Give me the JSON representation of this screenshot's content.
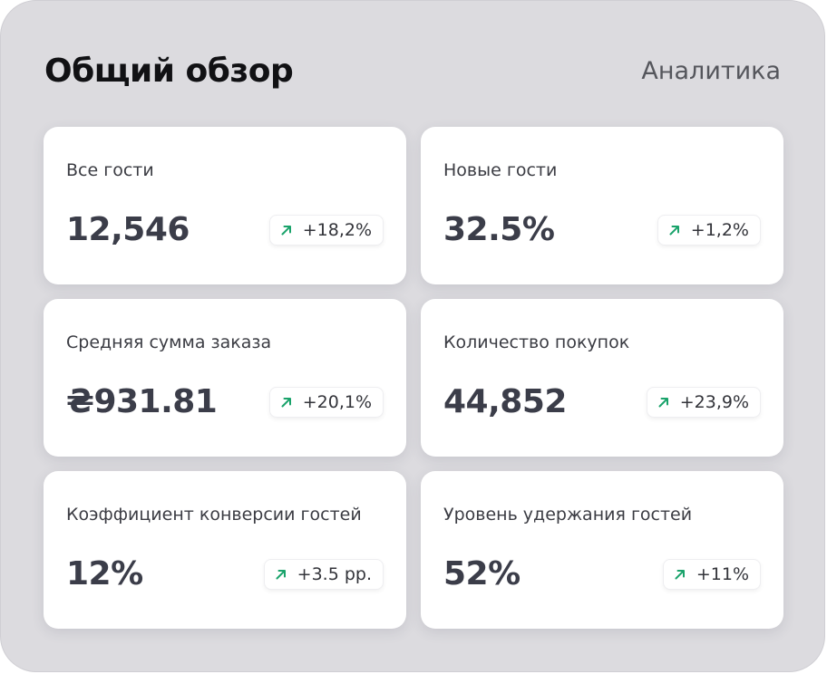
{
  "header": {
    "title": "Общий обзор",
    "link_label": "Аналитика"
  },
  "colors": {
    "trend_up": "#1aa36b"
  },
  "cards": [
    {
      "label": "Все гости",
      "value": "12,546",
      "change": "+18,2%",
      "trend": "arrow-up-right-icon"
    },
    {
      "label": "Новые гости",
      "value": "32.5%",
      "change": "+1,2%",
      "trend": "arrow-up-right-icon"
    },
    {
      "label": "Средняя сумма заказа",
      "value": "₴931.81",
      "change": "+20,1%",
      "trend": "arrow-up-right-icon"
    },
    {
      "label": "Количество покупок",
      "value": "44,852",
      "change": "+23,9%",
      "trend": "arrow-up-right-icon"
    },
    {
      "label": "Коэффициент конверсии гостей",
      "value": "12%",
      "change": "+3.5 pp.",
      "trend": "arrow-up-right-icon"
    },
    {
      "label": "Уровень удержания гостей",
      "value": "52%",
      "change": "+11%",
      "trend": "arrow-up-right-icon"
    }
  ]
}
